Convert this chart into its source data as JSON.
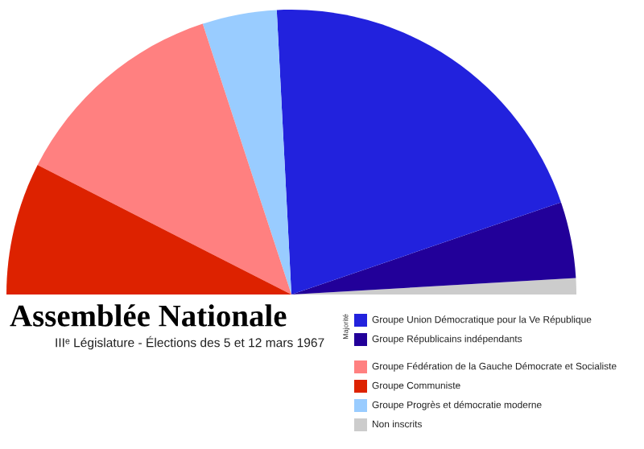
{
  "chart_data": {
    "type": "pie",
    "title": "Assemblée Nationale",
    "subtitle": "IIIᵉ Législature - Élections des 5 et 12 mars 1967",
    "categories": [
      "Groupe Union Démocratique pour la Ve République",
      "Groupe Républicains indépendants",
      "Groupe Fédération de la Gauche Démocrate et Socialiste",
      "Groupe Communiste",
      "Groupe Progrès et démocratie moderne",
      "Non inscrits"
    ],
    "values": [
      41.15,
      8.64,
      24.9,
      15.02,
      8.44,
      1.85
    ],
    "colors": [
      "#2222dd",
      "#220099",
      "#ff8080",
      "#dd2200",
      "#99ccff",
      "#cccccc"
    ],
    "annotations": [
      "Majorité"
    ],
    "legend": "bottom right"
  }
}
